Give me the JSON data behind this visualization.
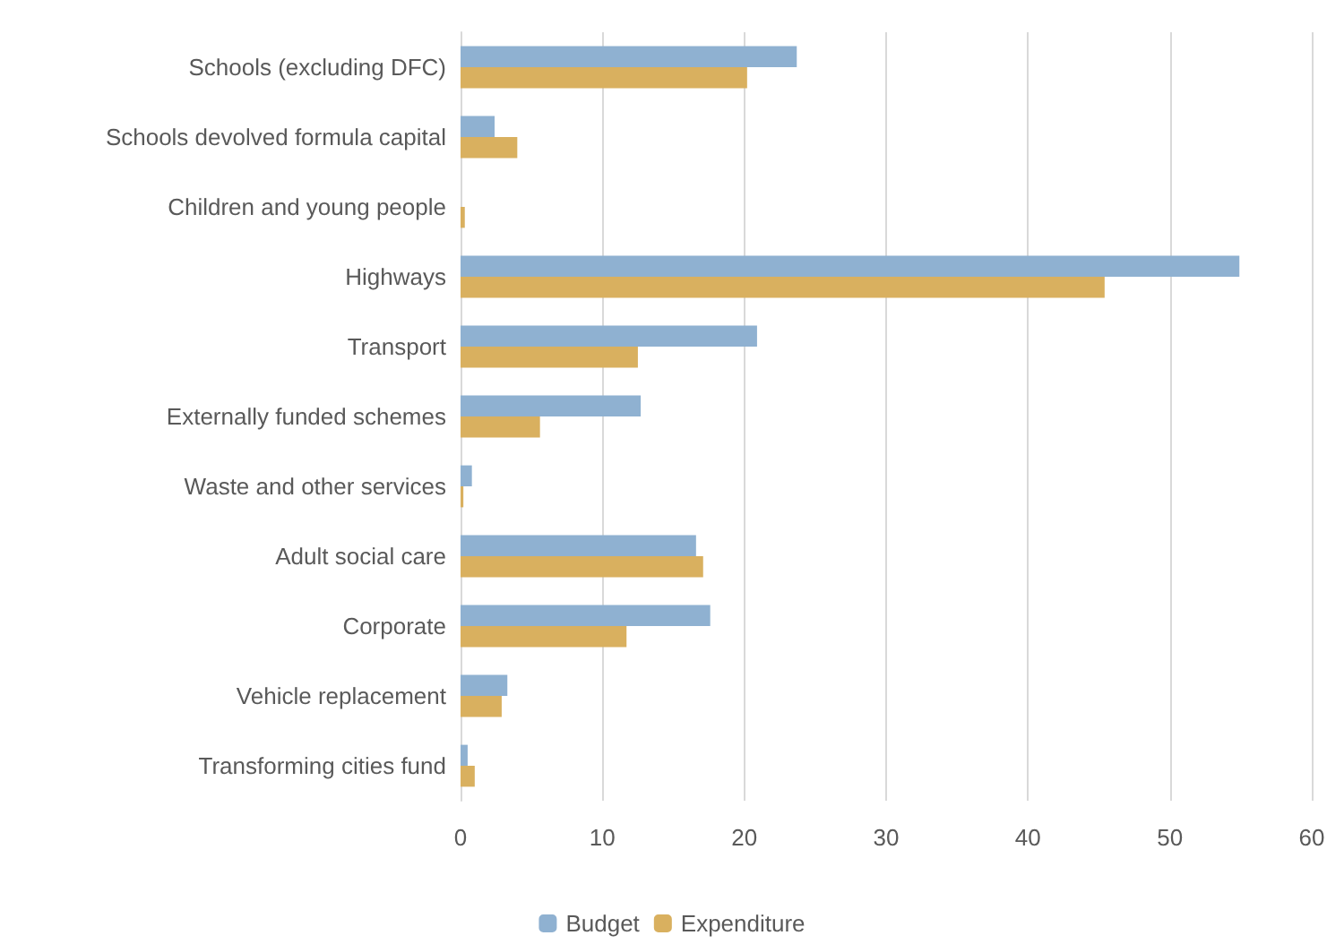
{
  "chart_data": {
    "type": "bar",
    "orientation": "horizontal",
    "categories": [
      "Schools (excluding DFC)",
      "Schools devolved formula capital",
      "Children and young people",
      "Highways",
      "Transport",
      "Externally funded schemes",
      "Waste and other services",
      "Adult social care",
      "Corporate",
      "Vehicle replacement",
      "Transforming cities fund"
    ],
    "series": [
      {
        "name": "Budget",
        "color": "#8fb1d1",
        "values": [
          23.7,
          2.4,
          0,
          54.9,
          20.9,
          12.7,
          0.8,
          16.6,
          17.6,
          3.3,
          0.5
        ]
      },
      {
        "name": "Expenditure",
        "color": "#d9b05f",
        "values": [
          20.2,
          4.0,
          0.3,
          45.4,
          12.5,
          5.6,
          0.2,
          17.1,
          11.7,
          2.9,
          1.0
        ]
      }
    ],
    "xlim": [
      0,
      60
    ],
    "xticks": [
      0,
      10,
      20,
      30,
      40,
      50,
      60
    ],
    "grid": "x",
    "legend": "bottom"
  }
}
